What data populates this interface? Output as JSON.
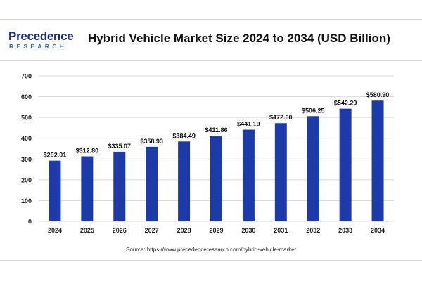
{
  "header": {
    "logo_main": "Precedence",
    "logo_sub": "RESEARCH",
    "title": "Hybrid Vehicle Market Size 2024 to 2034 (USD Billion)"
  },
  "colors": {
    "bar": "#1c3aa8",
    "grid": "#d8d8d8",
    "axis_text": "#222222",
    "brand_dark": "#1c2f7a",
    "brand_light": "#2a6ad0"
  },
  "chart_data": {
    "type": "bar",
    "title": "Hybrid Vehicle Market Size 2024 to 2034 (USD Billion)",
    "categories": [
      "2024",
      "2025",
      "2026",
      "2027",
      "2028",
      "2029",
      "2030",
      "2031",
      "2032",
      "2033",
      "2034"
    ],
    "values": [
      292.01,
      312.8,
      335.07,
      358.93,
      384.49,
      411.86,
      441.19,
      472.6,
      506.25,
      542.29,
      580.9
    ],
    "data_labels": [
      "$292.01",
      "$312.80",
      "$335.07",
      "$358.93",
      "$384.49",
      "$411.86",
      "$441.19",
      "$472.60",
      "$506.25",
      "$542.29",
      "$580.90"
    ],
    "yticks": [
      "0",
      "100",
      "200",
      "300",
      "400",
      "500",
      "600",
      "700"
    ],
    "ylim": [
      0,
      700
    ],
    "xlabel": "",
    "ylabel": "",
    "grid": true
  },
  "source": "Source: https://www.precedenceresearch.com/hybrid-vehicle-market"
}
